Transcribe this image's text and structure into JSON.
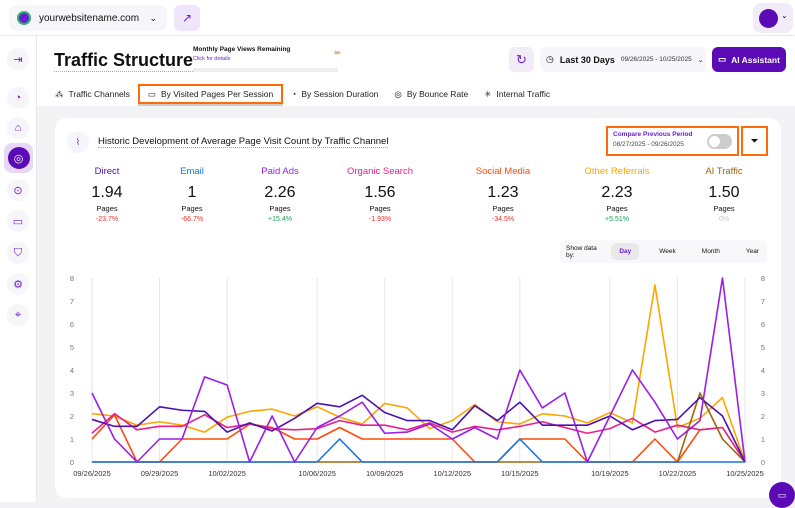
{
  "topbar": {
    "site": "yourwebsitename.com",
    "icons": {
      "site": "globe-icon",
      "external": "external-link-icon",
      "chevron": "chevron-down-icon"
    }
  },
  "sidebar": {
    "items": [
      "collapse-icon",
      "analytics-icon",
      "shop-icon",
      "traffic-icon",
      "target-icon",
      "chat-icon",
      "shield-icon",
      "settings-icon",
      "location-icon"
    ],
    "active": 3
  },
  "header": {
    "title": "Traffic Structure",
    "page_views_label": "Monthly Page Views Remaining",
    "page_views_link": "Click for details",
    "page_views_value": "∞",
    "date_label": "Last 30 Days",
    "date_range": "09/26/2025 - 10/25/2025",
    "ai_button": "AI Assistant"
  },
  "tabs": [
    {
      "label": "Traffic Channels",
      "icon": "channels-icon"
    },
    {
      "label": "By Visited Pages Per Session",
      "icon": "pages-icon",
      "selected": true
    },
    {
      "label": "By Session Duration",
      "icon": "clock-icon"
    },
    {
      "label": "By Bounce Rate",
      "icon": "bounce-icon"
    },
    {
      "label": "Internal Traffic",
      "icon": "internal-icon"
    }
  ],
  "card": {
    "title": "Historic Development of Average Page Visit Count by Traffic Channel",
    "compare_label": "Compare Previous Period",
    "compare_range": "08/27/2025 - 09/26/2025",
    "compare_on": false,
    "show_by_label": "Show data by:",
    "show_by_options": [
      "Day",
      "Week",
      "Month",
      "Year"
    ],
    "show_by_selected": "Day"
  },
  "metrics": [
    {
      "name": "Direct",
      "value": "1.94",
      "unit": "Pages",
      "change": "-23.7%",
      "color": "#4b12b0",
      "change_color": "#e8332a"
    },
    {
      "name": "Email",
      "value": "1",
      "unit": "Pages",
      "change": "-66.7%",
      "color": "#1a73e8",
      "change_color": "#e8332a"
    },
    {
      "name": "Paid Ads",
      "value": "2.26",
      "unit": "Pages",
      "change": "+15.4%",
      "color": "#9b1ee8",
      "change_color": "#1f9d55"
    },
    {
      "name": "Organic Search",
      "value": "1.56",
      "unit": "Pages",
      "change": "-1.93%",
      "color": "#e6208f",
      "change_color": "#e8332a"
    },
    {
      "name": "Social Media",
      "value": "1.23",
      "unit": "Pages",
      "change": "-34.5%",
      "color": "#ff4a0a",
      "change_color": "#e8332a"
    },
    {
      "name": "Other Referrals",
      "value": "2.23",
      "unit": "Pages",
      "change": "+5.51%",
      "color": "#ffa500",
      "change_color": "#1f9d55"
    },
    {
      "name": "AI Traffic",
      "value": "1.50",
      "unit": "Pages",
      "change": "0%",
      "color": "#a0620a",
      "change_color": "#c8c8c8"
    }
  ],
  "chart_data": {
    "type": "line",
    "x_ticks": [
      "09/26/2025",
      "09/29/2025",
      "10/02/2025",
      "10/06/2025",
      "10/09/2025",
      "10/12/2025",
      "10/15/2025",
      "10/19/2025",
      "10/22/2025",
      "10/25/2025"
    ],
    "x_tick_days": [
      0,
      3,
      6,
      10,
      13,
      16,
      19,
      23,
      26,
      29
    ],
    "x_start": "09/26/2025",
    "x_end": "10/25/2025",
    "ylim": [
      0,
      8
    ],
    "y_ticks": [
      0,
      1,
      2,
      3,
      4,
      5,
      6,
      7,
      8
    ],
    "grid": "vertical",
    "series": [
      {
        "name": "Other Referrals",
        "color": "#ffa500",
        "values": [
          2.1,
          2.0,
          1.6,
          1.75,
          1.6,
          1.3,
          1.95,
          2.2,
          2.3,
          2.0,
          2.4,
          1.95,
          1.65,
          2.55,
          2.35,
          1.45,
          1.8,
          2.5,
          1.75,
          1.65,
          2.1,
          2.0,
          1.7,
          2.15,
          1.7,
          7.7,
          1.5,
          1.9,
          2.8,
          0
        ]
      },
      {
        "name": "Social Media",
        "color": "#ff4a0a",
        "values": [
          1,
          2.05,
          0,
          0,
          1,
          1,
          1,
          1.65,
          1.5,
          1,
          1,
          1.5,
          1,
          1,
          1,
          1,
          1,
          0,
          0,
          1,
          1,
          1,
          0,
          0,
          0,
          1,
          0,
          1.4,
          1.5,
          0
        ]
      },
      {
        "name": "Organic Search",
        "color": "#e6208f",
        "values": [
          1.25,
          2.1,
          1.4,
          1.55,
          1.55,
          2.05,
          1.5,
          1.65,
          1.45,
          1.4,
          1.45,
          1.8,
          1.6,
          1.6,
          1.4,
          1.7,
          1.3,
          1.55,
          1.4,
          1.55,
          1.75,
          1.5,
          1.25,
          1.45,
          1.9,
          1.3,
          1.6,
          1.4,
          1.5,
          0
        ]
      },
      {
        "name": "AI Traffic",
        "color": "#a0620a",
        "values": [
          0,
          0,
          0,
          0,
          0,
          0,
          0,
          0,
          0,
          0,
          0,
          0,
          0,
          0,
          0,
          0,
          0,
          0,
          0,
          0,
          0,
          0,
          0,
          0,
          0,
          0,
          0,
          3.0,
          1.0,
          0
        ]
      },
      {
        "name": "Email",
        "color": "#1a73e8",
        "values": [
          0,
          0,
          0,
          0,
          0,
          0,
          0,
          0,
          0,
          0,
          0,
          1,
          0,
          0,
          0,
          0,
          0,
          0,
          0,
          1,
          0,
          0,
          0,
          0,
          0,
          0,
          0,
          0,
          0,
          0
        ]
      },
      {
        "name": "Direct",
        "color": "#4b12b0",
        "values": [
          1.85,
          1.55,
          1.55,
          2.4,
          2.25,
          2.2,
          1.3,
          1.7,
          1.35,
          1.9,
          2.55,
          2.4,
          2.9,
          2.15,
          1.8,
          1.8,
          1.4,
          2.45,
          1.8,
          2.6,
          1.6,
          1.6,
          1.6,
          2.0,
          1.4,
          1.8,
          1.85,
          2.8,
          2.0,
          0
        ]
      },
      {
        "name": "Paid Ads",
        "color": "#9b1ee8",
        "values": [
          3,
          1,
          0,
          1,
          1,
          3.7,
          3.35,
          0,
          2.0,
          0,
          1.5,
          2.0,
          2.6,
          1.25,
          1.3,
          1.65,
          1.0,
          1.5,
          1.0,
          4.0,
          2.35,
          3.0,
          0,
          2.0,
          4.0,
          2.6,
          1.0,
          1.8,
          8.0,
          0
        ]
      }
    ]
  }
}
